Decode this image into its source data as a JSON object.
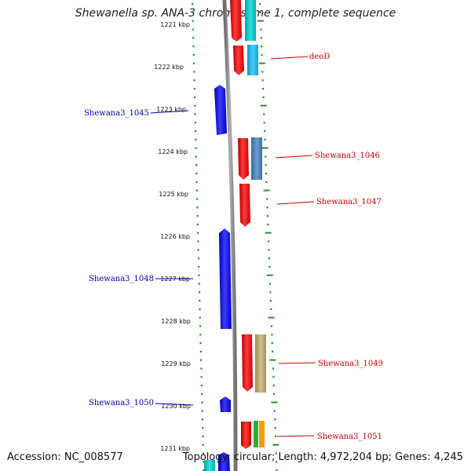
{
  "title": "Shewanella sp. ANA-3 chromosome 1, complete sequence",
  "accession_text": "Accession: NC_008577",
  "summary_text": "Topology: circular; Length: 4,972,204 bp; Genes: 4,245",
  "kbp_labels": [
    "1221 kbp",
    "1222 kbp",
    "1223 kbp",
    "1224 kbp",
    "1225 kbp",
    "1226 kbp",
    "1227 kbp",
    "1228 kbp",
    "1229 kbp",
    "1230 kbp",
    "1231 kbp"
  ],
  "gene_labels": {
    "deoD": "deoD",
    "shewana3_1045": "Shewana3_1045",
    "shewana3_1046": "Shewana3_1046",
    "shewana3_1047": "Shewana3_1047",
    "shewana3_1048": "Shewana3_1048",
    "shewana3_1049": "Shewana3_1049",
    "shewana3_1050": "Shewana3_1050",
    "shewana3_1051": "Shewana3_1051"
  },
  "colors": {
    "forward_gene": "#ff0000",
    "reverse_gene": "#0000ff",
    "backbone": "#808080",
    "tick": "#2e8b2e",
    "cog_cyan": "#00cccc",
    "cog_lightblue": "#29b6e8",
    "cog_steelblue": "#4a7fb5",
    "cog_khaki": "#b5a86a",
    "cog_green": "#33aa33",
    "cog_orange": "#ff9900"
  }
}
